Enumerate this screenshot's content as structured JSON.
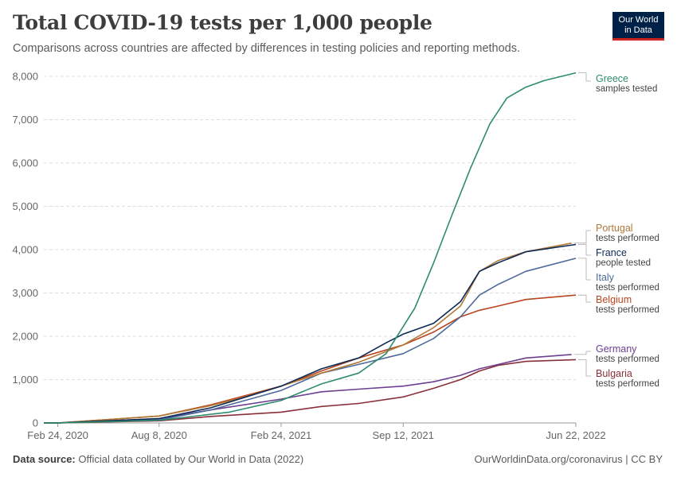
{
  "header": {
    "title": "Total COVID-19 tests per 1,000 people",
    "subtitle": "Comparisons across countries are affected by differences in testing policies and reporting methods.",
    "logo_line1": "Our World",
    "logo_line2": "in Data"
  },
  "footer": {
    "source_label": "Data source:",
    "source_text": "Official data collated by Our World in Data (2022)",
    "link_text": "OurWorldinData.org/coronavirus | CC BY"
  },
  "colors": {
    "Greece": "#2e8b6e",
    "Portugal": "#b07a39",
    "France": "#0d2a54",
    "Italy": "#4c6a9c",
    "Belgium": "#b9441f",
    "Germany": "#6d3e91",
    "Bulgaria": "#883039"
  },
  "chart_data": {
    "type": "line",
    "title": "Total COVID-19 tests per 1,000 people",
    "ylim": [
      0,
      8000
    ],
    "y_ticks": [
      0,
      1000,
      2000,
      3000,
      4000,
      5000,
      6000,
      7000,
      8000
    ],
    "y_tick_labels": [
      "0",
      "1,000",
      "2,000",
      "3,000",
      "4,000",
      "5,000",
      "6,000",
      "7,000",
      "8,000"
    ],
    "x_range": [
      "2020-02-01",
      "2022-06-22"
    ],
    "x_ticks": [
      "2020-02-24",
      "2020-08-08",
      "2021-02-24",
      "2021-09-12",
      "2022-06-22"
    ],
    "x_tick_labels": [
      "Feb 24, 2020",
      "Aug 8, 2020",
      "Feb 24, 2021",
      "Sep 12, 2021",
      "Jun 22, 2022"
    ],
    "grid": true,
    "legend_placement": "right",
    "series": [
      {
        "name": "Greece",
        "note": "samples tested",
        "x": [
          "2020-02-24",
          "2020-08-08",
          "2020-12-01",
          "2021-02-24",
          "2021-05-01",
          "2021-07-01",
          "2021-08-15",
          "2021-10-01",
          "2021-11-01",
          "2021-12-01",
          "2022-01-01",
          "2022-02-01",
          "2022-03-01",
          "2022-04-01",
          "2022-05-01",
          "2022-06-22"
        ],
        "y": [
          0,
          60,
          250,
          520,
          900,
          1150,
          1600,
          2650,
          3700,
          4800,
          5900,
          6900,
          7500,
          7750,
          7900,
          8080
        ]
      },
      {
        "name": "Portugal",
        "note": "tests performed",
        "x": [
          "2020-02-24",
          "2020-08-08",
          "2020-11-01",
          "2021-01-01",
          "2021-02-24",
          "2021-05-01",
          "2021-07-01",
          "2021-09-12",
          "2021-11-01",
          "2021-12-15",
          "2022-01-15",
          "2022-02-15",
          "2022-04-01",
          "2022-06-15"
        ],
        "y": [
          0,
          160,
          400,
          620,
          850,
          1150,
          1400,
          1800,
          2200,
          2700,
          3500,
          3750,
          3950,
          4150
        ]
      },
      {
        "name": "France",
        "note": "people tested",
        "x": [
          "2020-02-24",
          "2020-08-08",
          "2020-11-01",
          "2021-02-24",
          "2021-05-01",
          "2021-07-01",
          "2021-08-15",
          "2021-09-12",
          "2021-11-01",
          "2021-12-15",
          "2022-01-15",
          "2022-02-15",
          "2022-04-01",
          "2022-06-22"
        ],
        "y": [
          0,
          100,
          350,
          850,
          1250,
          1500,
          1850,
          2050,
          2300,
          2800,
          3500,
          3700,
          3950,
          4120
        ]
      },
      {
        "name": "Italy",
        "note": "tests performed",
        "x": [
          "2020-02-24",
          "2020-08-08",
          "2020-11-01",
          "2021-02-24",
          "2021-05-01",
          "2021-07-01",
          "2021-09-12",
          "2021-11-01",
          "2021-12-15",
          "2022-01-15",
          "2022-02-15",
          "2022-04-01",
          "2022-06-22"
        ],
        "y": [
          0,
          70,
          300,
          750,
          1150,
          1350,
          1600,
          1950,
          2450,
          2950,
          3200,
          3500,
          3800
        ]
      },
      {
        "name": "Belgium",
        "note": "tests performed",
        "x": [
          "2020-02-24",
          "2020-08-08",
          "2020-11-01",
          "2021-02-24",
          "2021-05-01",
          "2021-07-01",
          "2021-09-12",
          "2021-11-01",
          "2021-12-15",
          "2022-01-15",
          "2022-02-15",
          "2022-04-01",
          "2022-06-22"
        ],
        "y": [
          0,
          160,
          420,
          850,
          1200,
          1500,
          1800,
          2100,
          2450,
          2600,
          2700,
          2850,
          2950
        ]
      },
      {
        "name": "Germany",
        "note": "tests performed",
        "x": [
          "2020-02-24",
          "2020-08-08",
          "2020-11-01",
          "2021-02-24",
          "2021-05-01",
          "2021-07-01",
          "2021-09-12",
          "2021-11-01",
          "2021-12-15",
          "2022-01-15",
          "2022-02-15",
          "2022-04-01",
          "2022-06-15"
        ],
        "y": [
          0,
          100,
          300,
          550,
          720,
          780,
          850,
          950,
          1100,
          1250,
          1350,
          1500,
          1580
        ]
      },
      {
        "name": "Bulgaria",
        "note": "tests performed",
        "x": [
          "2020-02-24",
          "2020-08-08",
          "2020-11-01",
          "2021-02-24",
          "2021-05-01",
          "2021-07-01",
          "2021-09-12",
          "2021-11-01",
          "2021-12-15",
          "2022-01-15",
          "2022-02-15",
          "2022-04-01",
          "2022-06-22"
        ],
        "y": [
          0,
          50,
          150,
          250,
          380,
          450,
          600,
          800,
          1000,
          1200,
          1330,
          1420,
          1460
        ]
      }
    ]
  }
}
